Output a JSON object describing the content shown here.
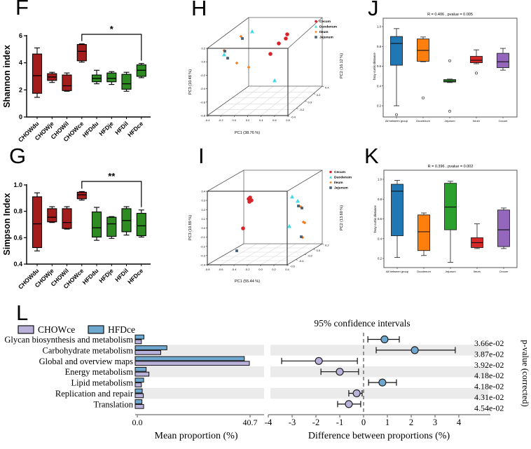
{
  "figure": {
    "panels": {
      "F": {
        "letter": "F"
      },
      "G": {
        "letter": "G"
      },
      "H": {
        "letter": "H"
      },
      "I": {
        "letter": "I"
      },
      "J": {
        "letter": "J"
      },
      "K": {
        "letter": "K"
      },
      "L": {
        "letter": "L"
      }
    }
  },
  "chart_data": [
    {
      "id": "F",
      "type": "box",
      "ylabel": "Shannon index",
      "ylim": [
        0,
        6
      ],
      "yticks": [
        "0",
        "2",
        "4",
        "6"
      ],
      "categories": [
        "CHOWdu",
        "CHOWje",
        "CHOWil",
        "CHOWce",
        "HFDdu",
        "HFDje",
        "HFDil",
        "HFDce"
      ],
      "colors": [
        "#a31d1d",
        "#a31d1d",
        "#a31d1d",
        "#a31d1d",
        "#2e8b22",
        "#2e8b22",
        "#2e8b22",
        "#2e8b22"
      ],
      "boxes": [
        [
          1.45,
          1.75,
          3.05,
          4.65,
          5.1
        ],
        [
          2.55,
          2.7,
          2.95,
          3.2,
          3.3
        ],
        [
          1.9,
          1.95,
          2.3,
          3.1,
          3.25
        ],
        [
          4.05,
          4.15,
          4.85,
          5.35,
          5.4
        ],
        [
          2.45,
          2.6,
          2.85,
          3.1,
          3.45
        ],
        [
          2.4,
          2.6,
          2.85,
          3.25,
          3.35
        ],
        [
          1.9,
          2.05,
          2.45,
          3.15,
          3.3
        ],
        [
          2.9,
          3.0,
          3.45,
          3.85,
          3.95
        ]
      ],
      "significance": {
        "from": "CHOWce",
        "to": "HFDce",
        "label": "*"
      }
    },
    {
      "id": "G",
      "type": "box",
      "ylabel": "Simpson Index",
      "ylim": [
        0.4,
        1.0
      ],
      "yticks": [
        "0.4",
        "0.6",
        "0.8",
        "1.0"
      ],
      "categories": [
        "CHOWdu",
        "CHOWje",
        "CHOWil",
        "CHOWce",
        "HFDdu",
        "HFDje",
        "HFDil",
        "HFDce"
      ],
      "colors": [
        "#a31d1d",
        "#a31d1d",
        "#a31d1d",
        "#a31d1d",
        "#2e8b22",
        "#2e8b22",
        "#2e8b22",
        "#2e8b22"
      ],
      "boxes": [
        [
          0.5,
          0.525,
          0.705,
          0.91,
          0.94
        ],
        [
          0.715,
          0.72,
          0.755,
          0.82,
          0.835
        ],
        [
          0.665,
          0.67,
          0.715,
          0.82,
          0.835
        ],
        [
          0.885,
          0.895,
          0.925,
          0.945,
          0.95
        ],
        [
          0.58,
          0.605,
          0.675,
          0.795,
          0.83
        ],
        [
          0.595,
          0.61,
          0.705,
          0.755,
          0.76
        ],
        [
          0.62,
          0.645,
          0.73,
          0.82,
          0.835
        ],
        [
          0.605,
          0.615,
          0.69,
          0.785,
          0.81
        ]
      ],
      "significance": {
        "from": "CHOWce",
        "to": "HFDce",
        "label": "**"
      }
    },
    {
      "id": "H",
      "type": "scatter3d",
      "xlabel": "PC1 (38.76 %)",
      "y2label": "PC2 (16.12 %)",
      "zlabel": "PC3 (10.48 %)",
      "xticks": [
        "-0.4",
        "-0.2",
        "0.0",
        "0.2",
        "0.4",
        "0.6",
        "0.8"
      ],
      "zticks": [
        "0.2",
        "0.0",
        "-0.2",
        "-0.4",
        "-0.6",
        "-0.8"
      ],
      "yticks": [
        "0.4",
        "0.2",
        "0.0",
        "-0.2",
        "-0.4"
      ],
      "legend": [
        {
          "label": "Cecum",
          "color": "#d8232a",
          "marker": "circle"
        },
        {
          "label": "Duodenum",
          "color": "#45d9e6",
          "marker": "triangle"
        },
        {
          "label": "Ileum",
          "color": "#f47e20",
          "marker": "diamond"
        },
        {
          "label": "Jejunum",
          "color": "#46607c",
          "marker": "square"
        }
      ],
      "points": [
        {
          "group": "Cecum",
          "x": 165,
          "y": 49
        },
        {
          "group": "Cecum",
          "x": 163,
          "y": 55
        },
        {
          "group": "Cecum",
          "x": 153,
          "y": 62
        },
        {
          "group": "Cecum",
          "x": 141,
          "y": 77
        },
        {
          "group": "Duodenum",
          "x": 115,
          "y": 45
        },
        {
          "group": "Duodenum",
          "x": 75,
          "y": 78
        },
        {
          "group": "Duodenum",
          "x": 147,
          "y": 115
        },
        {
          "group": "Ileum",
          "x": 99,
          "y": 52
        },
        {
          "group": "Ileum",
          "x": 75,
          "y": 72
        },
        {
          "group": "Ileum",
          "x": 93,
          "y": 90
        },
        {
          "group": "Ileum",
          "x": 110,
          "y": 96
        },
        {
          "group": "Jejunum",
          "x": 101,
          "y": 55
        },
        {
          "group": "Jejunum",
          "x": 76,
          "y": 73
        },
        {
          "group": "Jejunum",
          "x": 80,
          "y": 83
        }
      ]
    },
    {
      "id": "I",
      "type": "scatter3d",
      "xlabel": "PC1 (55.44 %)",
      "y2label": "PC2 (13.60 %)",
      "zlabel": "PC3 (10.89 %)",
      "xticks": [
        "-0.8",
        "-0.6",
        "-0.4",
        "-0.2",
        "0.0",
        "0.2",
        "0.4"
      ],
      "zticks": [
        "0.4",
        "0.3",
        "0.2",
        "0.1",
        "0.0",
        "-0.1",
        "-0.2",
        "-0.3",
        "-0.4"
      ],
      "yticks": [
        "0.2",
        "0.0",
        "-0.2",
        "-0.4",
        "-0.6"
      ],
      "legend": [
        {
          "label": "Cecum",
          "color": "#d8232a",
          "marker": "circle"
        },
        {
          "label": "Duodenum",
          "color": "#45d9e6",
          "marker": "triangle"
        },
        {
          "label": "Ileum",
          "color": "#f47e20",
          "marker": "diamond"
        },
        {
          "label": "Jejunum",
          "color": "#46607c",
          "marker": "square"
        }
      ],
      "points": [
        {
          "group": "Cecum",
          "x": 110,
          "y": 79
        },
        {
          "group": "Cecum",
          "x": 112,
          "y": 77
        },
        {
          "group": "Cecum",
          "x": 114,
          "y": 81
        },
        {
          "group": "Cecum",
          "x": 111,
          "y": 83
        },
        {
          "group": "Cecum",
          "x": 102,
          "y": 121
        },
        {
          "group": "Duodenum",
          "x": 172,
          "y": 76
        },
        {
          "group": "Duodenum",
          "x": 180,
          "y": 82
        },
        {
          "group": "Duodenum",
          "x": 168,
          "y": 118
        },
        {
          "group": "Ileum",
          "x": 184,
          "y": 90
        },
        {
          "group": "Ileum",
          "x": 188,
          "y": 112
        },
        {
          "group": "Ileum",
          "x": 190,
          "y": 113
        },
        {
          "group": "Ileum",
          "x": 187,
          "y": 134
        },
        {
          "group": "Jejunum",
          "x": 181,
          "y": 89
        },
        {
          "group": "Jejunum",
          "x": 186,
          "y": 92
        },
        {
          "group": "Jejunum",
          "x": 185,
          "y": 133
        },
        {
          "group": "Jejunum",
          "x": 93,
          "y": 153
        }
      ]
    },
    {
      "id": "J",
      "type": "box",
      "title": "R = 0.406 , pvalue = 0.005",
      "ylabel": "bray curtis distance",
      "ylim": [
        0.2,
        1.0
      ],
      "yticks": [
        "0.2",
        "0.4",
        "0.6",
        "0.8",
        "1.0"
      ],
      "categories": [
        "All between group",
        "Duodenum",
        "Jejunum",
        "Ileum",
        "Cecum"
      ],
      "colors": [
        "#1f77b4",
        "#ff7f0e",
        "#2ca02c",
        "#d62728",
        "#9467bd"
      ],
      "boxes": [
        [
          0.2,
          0.61,
          0.83,
          0.9,
          0.98
        ],
        [
          0.645,
          0.65,
          0.76,
          0.875,
          0.895
        ],
        [
          0.435,
          0.44,
          0.45,
          0.465,
          0.47
        ],
        [
          0.625,
          0.635,
          0.66,
          0.7,
          0.765
        ],
        [
          0.56,
          0.585,
          0.645,
          0.73,
          0.78
        ]
      ],
      "outliers": [
        [
          0.11
        ],
        [
          0.28
        ],
        [
          0.655,
          0.145
        ],
        [
          0.53
        ],
        []
      ]
    },
    {
      "id": "K",
      "type": "box",
      "title": "R = 0.396 , pvalue = 0.002",
      "ylabel": "bray curtis distance",
      "ylim": [
        0.2,
        1.0
      ],
      "yticks": [
        "0.2",
        "0.4",
        "0.6",
        "0.8",
        "1.0"
      ],
      "categories": [
        "All between group",
        "Duodenum",
        "Jejunum",
        "Ileum",
        "Cecum"
      ],
      "colors": [
        "#1f77b4",
        "#ff7f0e",
        "#2ca02c",
        "#d62728",
        "#9467bd"
      ],
      "boxes": [
        [
          0.21,
          0.43,
          0.88,
          0.95,
          0.99
        ],
        [
          0.23,
          0.28,
          0.47,
          0.64,
          0.66
        ],
        [
          0.16,
          0.49,
          0.72,
          0.96,
          0.98
        ],
        [
          0.3,
          0.31,
          0.36,
          0.41,
          0.55
        ],
        [
          0.3,
          0.32,
          0.49,
          0.69,
          0.71
        ]
      ],
      "outliers": [
        [],
        [],
        [],
        [],
        []
      ]
    },
    {
      "id": "L",
      "type": "bar",
      "legend": [
        {
          "label": "CHOWce",
          "color": "#b9b1da"
        },
        {
          "label": "HFDce",
          "color": "#6fa8cf"
        }
      ],
      "categories": [
        "Glycan biosynthesis and metabolism",
        "Carbohydrate metabolism",
        "Global and overview maps",
        "Energy metabolism",
        "Lipid metabolism",
        "Replication and repair",
        "Translation"
      ],
      "series": [
        {
          "name": "CHOWce",
          "values": [
            2.2,
            9.1,
            40.7,
            4.9,
            2.2,
            2.9,
            3.0
          ]
        },
        {
          "name": "HFDce",
          "values": [
            3.1,
            11.3,
            38.9,
            3.9,
            3.0,
            2.5,
            2.4
          ]
        }
      ],
      "mean_axis": {
        "ticks": [
          "0.0",
          "40.7"
        ],
        "max": 40.7,
        "label": "Mean proportion (%)"
      },
      "ci_axis": {
        "ticks": [
          "-4",
          "-3",
          "-2",
          "-1",
          "0",
          "1",
          "2",
          "3",
          "4"
        ],
        "min": -4,
        "max": 4,
        "title": "95% confidence intervals",
        "label": "Difference between proportions (%)"
      },
      "ci": [
        {
          "diff": 0.88,
          "lo": 0.18,
          "hi": 1.5,
          "enriched": "HFDce"
        },
        {
          "diff": 2.15,
          "lo": 0.53,
          "hi": 3.85,
          "enriched": "HFDce"
        },
        {
          "diff": -1.88,
          "lo": -3.44,
          "hi": -0.26,
          "enriched": "CHOWce"
        },
        {
          "diff": -1.0,
          "lo": -1.79,
          "hi": -0.21,
          "enriched": "CHOWce"
        },
        {
          "diff": 0.79,
          "lo": 0.21,
          "hi": 1.38,
          "enriched": "HFDce"
        },
        {
          "diff": -0.29,
          "lo": -0.62,
          "hi": -0.06,
          "enriched": "CHOWce"
        },
        {
          "diff": -0.62,
          "lo": -1.09,
          "hi": -0.12,
          "enriched": "CHOWce"
        }
      ],
      "pvalues": [
        "3.66e-02",
        "3.87e-02",
        "3.92e-02",
        "4.18e-02",
        "4.18e-02",
        "4.31e-02",
        "4.54e-02"
      ],
      "pvalue_axis_label": "p-value (corrected)",
      "striped_rows": [
        1,
        3,
        5
      ]
    }
  ]
}
